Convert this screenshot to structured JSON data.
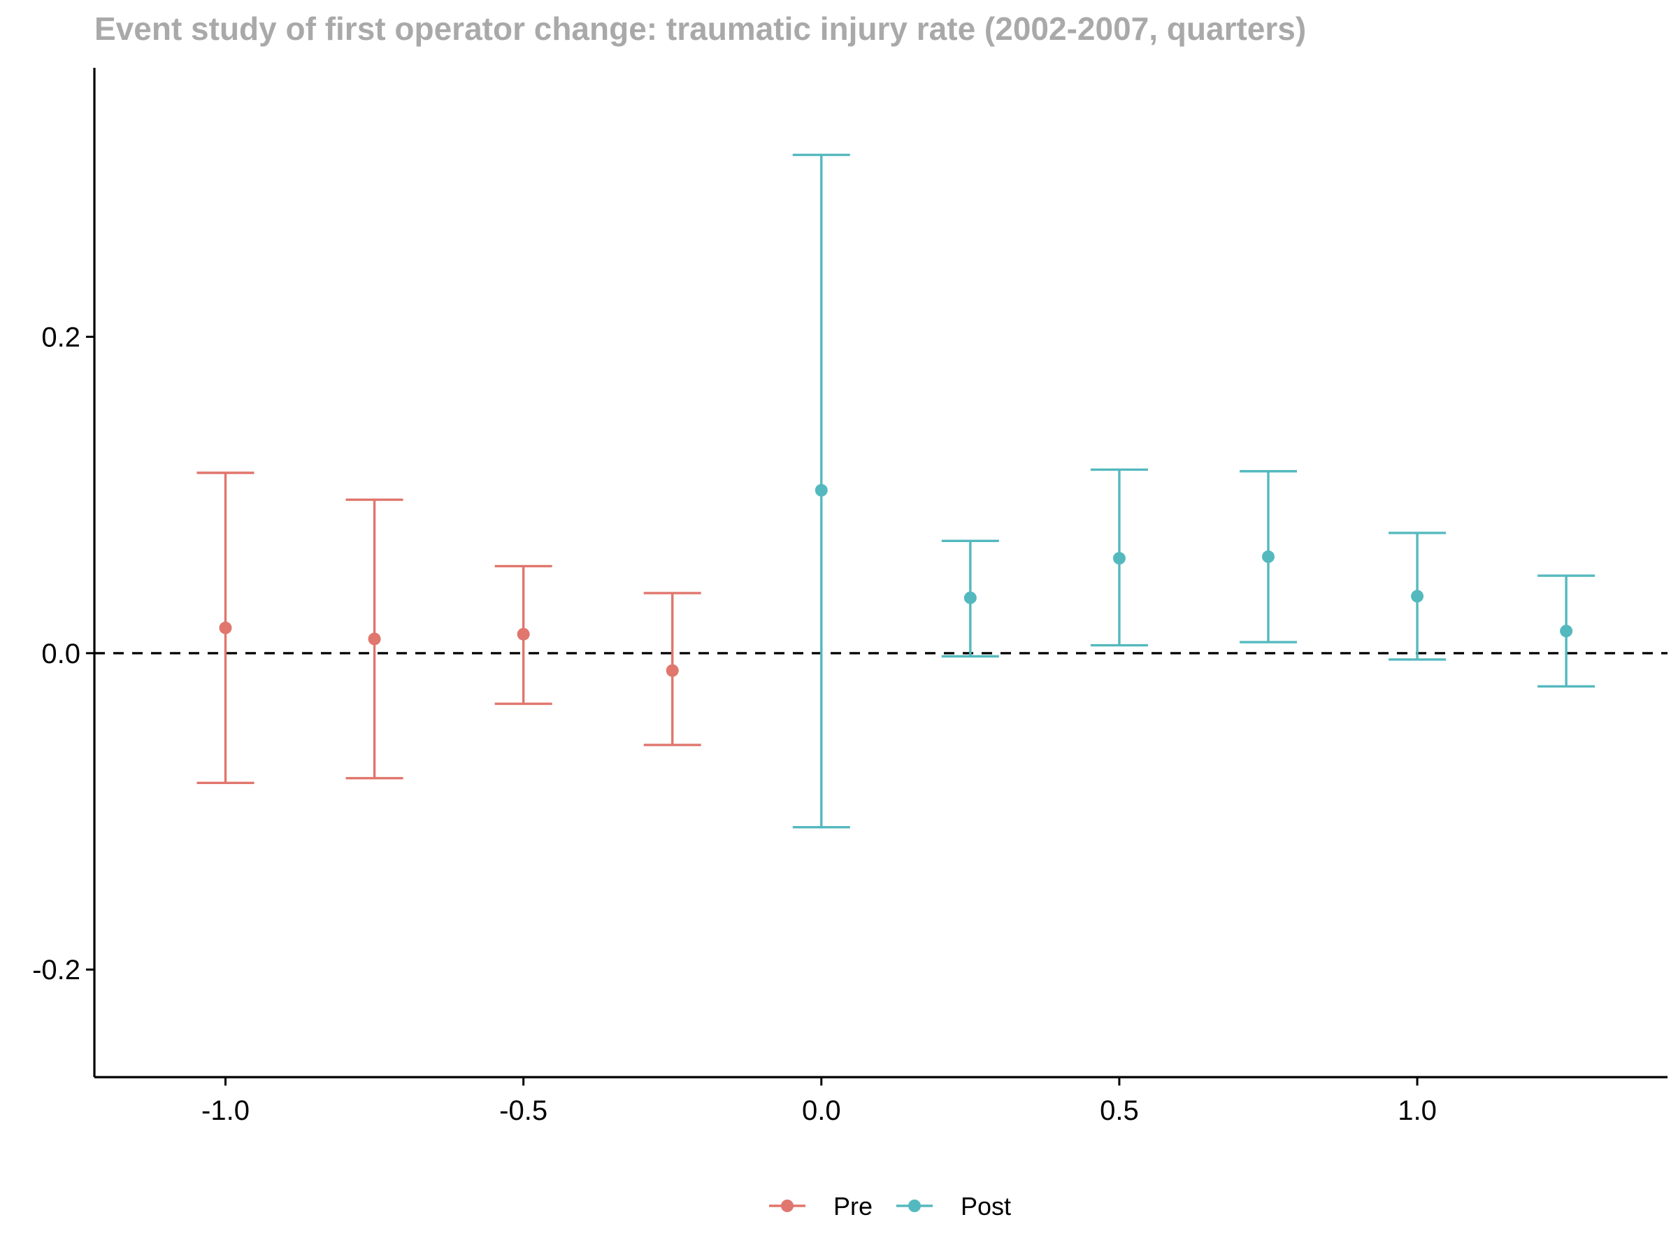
{
  "chart_data": {
    "type": "errorbar",
    "title": "Event study of first operator change: traumatic injury rate (2002-2007, quarters)",
    "xlabel": "",
    "ylabel": "",
    "xlim": [
      -1.22,
      1.42
    ],
    "ylim": [
      -0.268,
      0.37
    ],
    "x_ticks": [
      -1.0,
      -0.5,
      0.0,
      0.5,
      1.0
    ],
    "x_tick_labels": [
      "-1.0",
      "-0.5",
      "0.0",
      "0.5",
      "1.0"
    ],
    "y_ticks": [
      -0.2,
      0.0,
      0.2
    ],
    "y_tick_labels": [
      "-0.2",
      "0.0",
      "0.2"
    ],
    "reference_line": {
      "y": 0,
      "style": "dashed",
      "color": "#000000"
    },
    "grid": false,
    "legend": {
      "position": "bottom"
    },
    "series": [
      {
        "name": "Pre",
        "color": "#e0766d",
        "points": [
          {
            "x": -1.0,
            "y": 0.016,
            "lower": -0.082,
            "upper": 0.114
          },
          {
            "x": -0.75,
            "y": 0.009,
            "lower": -0.079,
            "upper": 0.097
          },
          {
            "x": -0.5,
            "y": 0.012,
            "lower": -0.032,
            "upper": 0.055
          },
          {
            "x": -0.25,
            "y": -0.011,
            "lower": -0.058,
            "upper": 0.038
          }
        ]
      },
      {
        "name": "Post",
        "color": "#54b9be",
        "points": [
          {
            "x": 0.0,
            "y": 0.103,
            "lower": -0.11,
            "upper": 0.315
          },
          {
            "x": 0.25,
            "y": 0.035,
            "lower": -0.002,
            "upper": 0.071
          },
          {
            "x": 0.5,
            "y": 0.06,
            "lower": 0.005,
            "upper": 0.116
          },
          {
            "x": 0.75,
            "y": 0.061,
            "lower": 0.007,
            "upper": 0.115
          },
          {
            "x": 1.0,
            "y": 0.036,
            "lower": -0.004,
            "upper": 0.076
          },
          {
            "x": 1.25,
            "y": 0.014,
            "lower": -0.021,
            "upper": 0.049
          }
        ]
      }
    ]
  }
}
